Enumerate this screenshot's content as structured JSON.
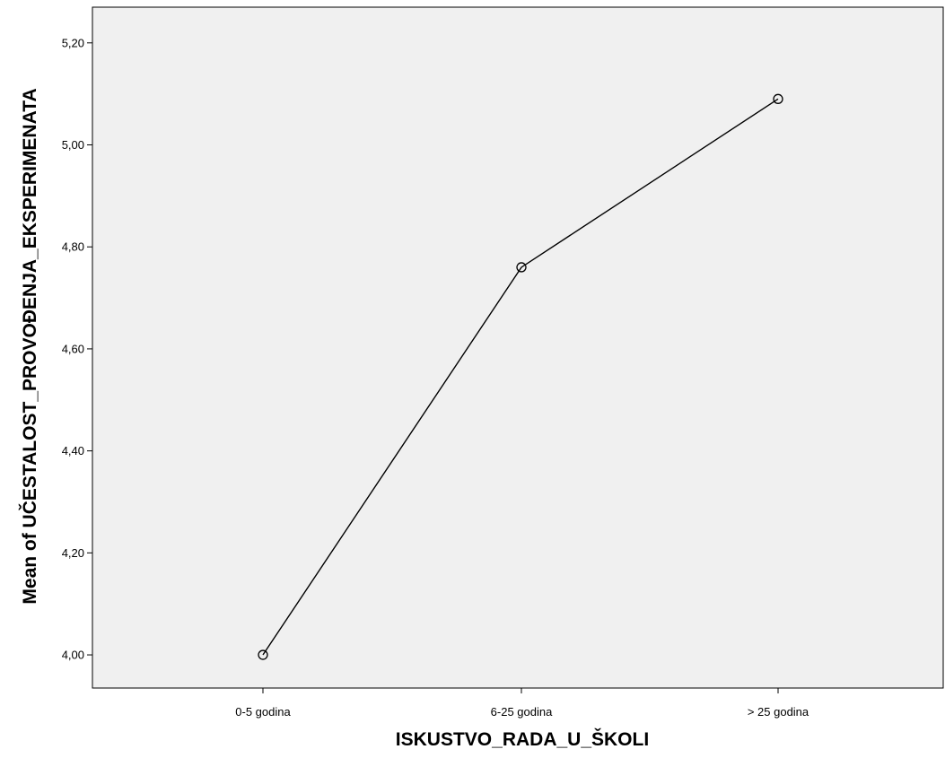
{
  "chart_data": {
    "type": "line",
    "title": "",
    "xlabel": "ISKUSTVO_RADA_U_ŠKOLI",
    "ylabel": "Mean of UČESTALOST_PROVOĐENJA_EKSPERIMENATA",
    "categories": [
      "0-5 godina",
      "6-25 godina",
      "> 25 godina"
    ],
    "series": [
      {
        "values": [
          4.0,
          4.76,
          5.09
        ]
      }
    ],
    "ylim": [
      3.935,
      5.27
    ],
    "yticks": [
      4.0,
      4.2,
      4.4,
      4.6,
      4.8,
      5.0,
      5.2
    ],
    "ytick_labels": [
      "4,00",
      "4,20",
      "4,40",
      "4,60",
      "4,80",
      "5,00",
      "5,20"
    ],
    "grid": false,
    "marker": "open-circle",
    "colors": {
      "plot_background": "#f0f0f0",
      "line": "#000000",
      "frame": "#000000"
    }
  }
}
